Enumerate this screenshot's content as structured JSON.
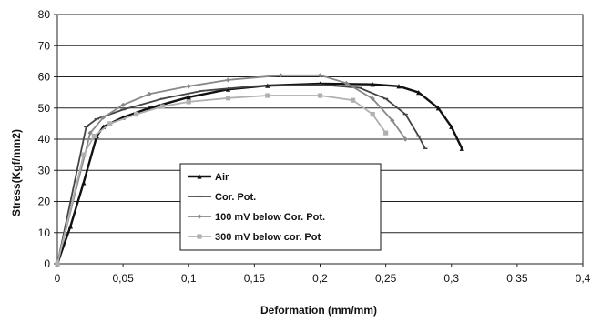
{
  "chart_data": {
    "type": "line",
    "xlabel": "Deformation (mm/mm)",
    "ylabel": "Stress(Kgf/mm2)",
    "xlim": [
      0,
      0.4
    ],
    "ylim": [
      0,
      80
    ],
    "x_ticks": [
      0,
      0.05,
      0.1,
      0.15,
      0.2,
      0.25,
      0.3,
      0.35,
      0.4
    ],
    "x_tick_labels": [
      "0",
      "0,05",
      "0,1",
      "0,15",
      "0,2",
      "0,25",
      "0,3",
      "0,35",
      "0,4"
    ],
    "y_ticks": [
      0,
      10,
      20,
      30,
      40,
      50,
      60,
      70,
      80
    ],
    "y_tick_labels": [
      "0",
      "10",
      "20",
      "30",
      "40",
      "50",
      "60",
      "70",
      "80"
    ],
    "grid": "horizontal",
    "legend_position": "center-left",
    "series": [
      {
        "name": "Air",
        "color": "#111111",
        "marker": "triangle",
        "points": [
          [
            0,
            0
          ],
          [
            0.01,
            12
          ],
          [
            0.02,
            26
          ],
          [
            0.03,
            41
          ],
          [
            0.035,
            44
          ],
          [
            0.05,
            47
          ],
          [
            0.07,
            50
          ],
          [
            0.1,
            53.5
          ],
          [
            0.13,
            56
          ],
          [
            0.16,
            57.2
          ],
          [
            0.2,
            57.8
          ],
          [
            0.24,
            57.6
          ],
          [
            0.26,
            57
          ],
          [
            0.275,
            55
          ],
          [
            0.29,
            50
          ],
          [
            0.3,
            44
          ],
          [
            0.308,
            37
          ]
        ]
      },
      {
        "name": "Cor. Pot.",
        "color": "#444444",
        "marker": "dash",
        "points": [
          [
            0,
            0
          ],
          [
            0.022,
            44
          ],
          [
            0.03,
            46.5
          ],
          [
            0.05,
            49.5
          ],
          [
            0.08,
            53
          ],
          [
            0.11,
            55.5
          ],
          [
            0.15,
            57
          ],
          [
            0.2,
            57.5
          ],
          [
            0.23,
            56.5
          ],
          [
            0.25,
            53
          ],
          [
            0.265,
            48
          ],
          [
            0.275,
            41
          ],
          [
            0.28,
            37
          ]
        ]
      },
      {
        "name": "100 mV below Cor. Pot.",
        "color": "#888888",
        "marker": "diamond",
        "points": [
          [
            0,
            0
          ],
          [
            0.025,
            42
          ],
          [
            0.035,
            47
          ],
          [
            0.05,
            51
          ],
          [
            0.07,
            54.5
          ],
          [
            0.1,
            57
          ],
          [
            0.13,
            59
          ],
          [
            0.17,
            60.5
          ],
          [
            0.2,
            60.5
          ],
          [
            0.22,
            58
          ],
          [
            0.24,
            53
          ],
          [
            0.255,
            46
          ],
          [
            0.265,
            40
          ]
        ]
      },
      {
        "name": "300 mV below cor. Pot",
        "color": "#b0b0b0",
        "marker": "square",
        "points": [
          [
            0,
            0
          ],
          [
            0.02,
            35
          ],
          [
            0.028,
            41
          ],
          [
            0.04,
            45
          ],
          [
            0.06,
            48
          ],
          [
            0.08,
            50.5
          ],
          [
            0.1,
            52
          ],
          [
            0.13,
            53.2
          ],
          [
            0.16,
            54
          ],
          [
            0.2,
            54
          ],
          [
            0.225,
            52.5
          ],
          [
            0.24,
            48
          ],
          [
            0.25,
            42
          ]
        ]
      }
    ]
  }
}
